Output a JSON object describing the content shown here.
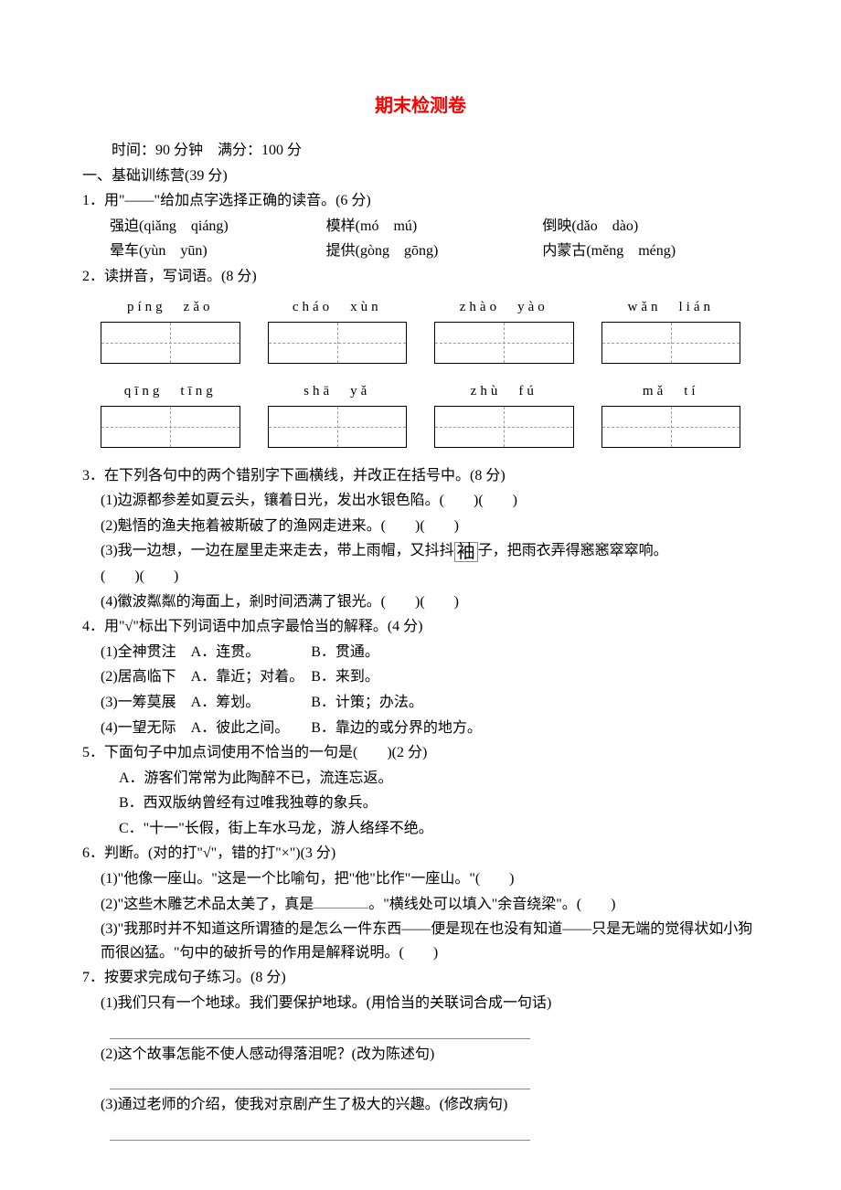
{
  "title": "期末检测卷",
  "time_info": "时间：90 分钟　满分：100 分",
  "section1": {
    "header": "一、基础训练营(39 分)",
    "q1": {
      "prompt": "1．用\"——\"给加点字选择正确的读音。(6 分)",
      "row1": {
        "a": "强迫(qiǎng　qiáng)",
        "b": "模样(mó　mú)",
        "c": "倒映(dǎo　dào)"
      },
      "row2": {
        "a": "晕车(yùn　yūn)",
        "b": "提供(gòng　gōng)",
        "c": "内蒙古(měng　méng)"
      }
    },
    "q2": {
      "prompt": "2．读拼音，写词语。(8 分)",
      "row1": [
        "píng　zǎo",
        "cháo　xùn",
        "zhào　yào",
        "wǎn　lián"
      ],
      "row2": [
        "qīng　tīng",
        "shā　yǎ",
        "zhù　fú",
        "mǎ　tí"
      ]
    },
    "q3": {
      "prompt": "3．在下列各句中的两个错别字下画横线，并改正在括号中。(8 分)",
      "items": {
        "i1": "(1)边源都参差如夏云头，镶着日光，发出水银色陷。(　　)(　　)",
        "i2": "(2)魁悟的渔夫拖着被斯破了的渔网走进来。(　　)(　　)",
        "i3a": "(3)我一边想，一边在屋里走来走去，带上雨帽，又抖抖",
        "i3b": "子，把雨衣弄得窸窸窣窣响。",
        "i3c": "(　　)(　　)",
        "i4": "(4)徽波粼粼的海面上，剎时间洒满了银光。(　　)(　　)"
      }
    },
    "q4": {
      "prompt": "4．用\"√\"标出下列词语中加点字最恰当的解释。(4 分)",
      "items": {
        "i1": "(1)全神贯注　A．连贯。　　　　B．贯通。",
        "i2": "(2)居高临下　A．靠近；对着。　B．来到。",
        "i3": "(3)一筹莫展　A．筹划。　　　　B．计策；办法。",
        "i4": "(4)一望无际　A．彼此之间。　　B．靠边的或分界的地方。"
      }
    },
    "q5": {
      "prompt": "5．下面句子中加点词使用不恰当的一句是(　　)(2 分)",
      "options": {
        "a": "A．游客们常常为此陶醉不已，流连忘返。",
        "b": "B．西双版纳曾经有过唯我独尊的象兵。",
        "c": "C．\"十一\"长假，街上车水马龙，游人络绎不绝。"
      }
    },
    "q6": {
      "prompt": "6．判断。(对的打\"√\"，错的打\"×\")(3 分)",
      "items": {
        "i1": "(1)\"他像一座山。\"这是一个比喻句，把\"他\"比作\"一座山。\"(　　)",
        "i2a": "(2)\"这些木雕艺术品太美了，真是",
        "i2b": "。\"横线处可以填入\"余音绕梁\"。(　　)",
        "i3": "(3)\"我那时并不知道这所谓猹的是怎么一件东西——便是现在也没有知道——只是无端的觉得状如小狗而很凶猛。\"句中的破折号的作用是解释说明。(　　)"
      }
    },
    "q7": {
      "prompt": "7．按要求完成句子练习。(8 分)",
      "items": {
        "i1": "(1)我们只有一个地球。我们要保护地球。(用恰当的关联词合成一句话)",
        "i2": "(2)这个故事怎能不使人感动得落泪呢？(改为陈述句)",
        "i3": "(3)通过老师的介绍，使我对京剧产生了极大的兴趣。(修改病句)"
      }
    }
  },
  "xiu_char": "袖"
}
